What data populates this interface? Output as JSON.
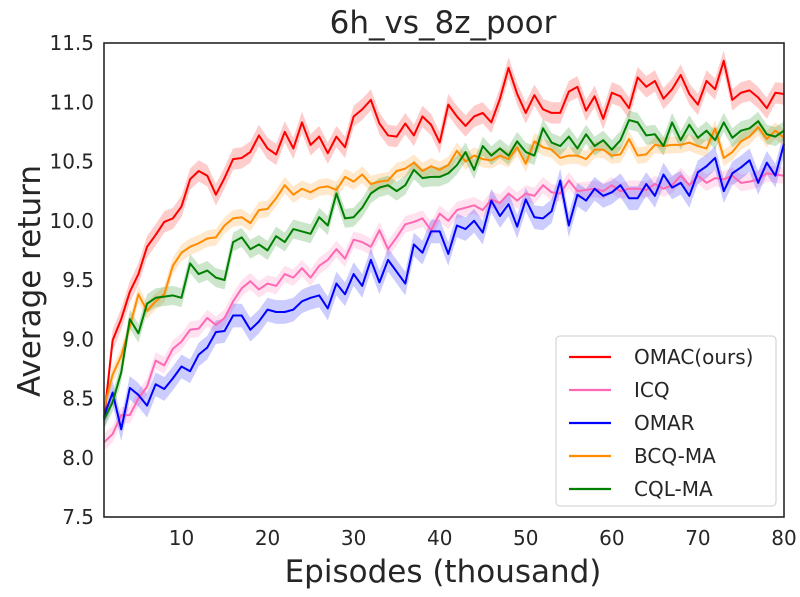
{
  "chart_data": {
    "type": "line",
    "title": "6h_vs_8z_poor",
    "xlabel": "Episodes (thousand)",
    "ylabel": "Average return",
    "xlim": [
      1,
      80
    ],
    "ylim": [
      7.5,
      11.5
    ],
    "xticks": [
      10,
      20,
      30,
      40,
      50,
      60,
      70,
      80
    ],
    "yticks": [
      7.5,
      8.0,
      8.5,
      9.0,
      9.5,
      10.0,
      10.5,
      11.0,
      11.5
    ],
    "ytick_labels": [
      "7.5",
      "8.0",
      "8.5",
      "9.0",
      "9.5",
      "10.0",
      "10.5",
      "11.0",
      "11.5"
    ],
    "legend_position": "lower-right",
    "series": [
      {
        "name": "OMAC(ours)",
        "color": "#ff0000",
        "band": 0.09,
        "values": [
          8.33,
          8.99,
          9.17,
          9.4,
          9.55,
          9.78,
          9.88,
          9.99,
          10.02,
          10.12,
          10.35,
          10.42,
          10.38,
          10.22,
          10.36,
          10.52,
          10.53,
          10.58,
          10.72,
          10.61,
          10.56,
          10.75,
          10.61,
          10.83,
          10.64,
          10.71,
          10.57,
          10.71,
          10.62,
          10.88,
          10.94,
          11.02,
          10.82,
          10.72,
          10.71,
          10.82,
          10.72,
          10.88,
          10.81,
          10.66,
          10.98,
          10.88,
          10.8,
          10.88,
          10.91,
          10.83,
          11.03,
          11.29,
          11.07,
          10.91,
          11.06,
          10.94,
          10.91,
          10.91,
          11.09,
          11.13,
          10.93,
          11.05,
          10.86,
          11.08,
          11.05,
          10.95,
          11.21,
          11.13,
          11.18,
          11.03,
          11.11,
          11.23,
          11.07,
          10.98,
          11.18,
          11.11,
          11.35,
          11.02,
          11.08,
          11.1,
          11.04,
          10.95,
          11.08,
          11.07
        ]
      },
      {
        "name": "ICQ",
        "color": "#ff69b4",
        "band": 0.07,
        "values": [
          8.13,
          8.2,
          8.36,
          8.36,
          8.5,
          8.6,
          8.82,
          8.78,
          8.92,
          8.98,
          9.08,
          9.09,
          9.18,
          9.12,
          9.18,
          9.32,
          9.43,
          9.49,
          9.42,
          9.47,
          9.45,
          9.55,
          9.52,
          9.6,
          9.52,
          9.62,
          9.67,
          9.76,
          9.68,
          9.84,
          9.82,
          9.78,
          9.92,
          9.76,
          9.86,
          9.97,
          9.99,
          10.02,
          9.92,
          10.06,
          10.0,
          10.09,
          10.11,
          10.13,
          10.09,
          10.18,
          10.15,
          10.23,
          10.17,
          10.23,
          10.21,
          10.3,
          10.24,
          10.23,
          10.34,
          10.25,
          10.26,
          10.27,
          10.25,
          10.3,
          10.25,
          10.27,
          10.27,
          10.26,
          10.31,
          10.27,
          10.3,
          10.38,
          10.3,
          10.38,
          10.32,
          10.36,
          10.35,
          10.38,
          10.32,
          10.33,
          10.35,
          10.4,
          10.39,
          10.38
        ]
      },
      {
        "name": "OMAR",
        "color": "#0000ff",
        "band": 0.1,
        "values": [
          8.35,
          8.55,
          8.24,
          8.59,
          8.53,
          8.44,
          8.62,
          8.58,
          8.67,
          8.77,
          8.73,
          8.87,
          8.93,
          9.06,
          9.07,
          9.2,
          9.2,
          9.08,
          9.15,
          9.25,
          9.23,
          9.23,
          9.25,
          9.32,
          9.35,
          9.37,
          9.26,
          9.47,
          9.38,
          9.55,
          9.45,
          9.67,
          9.48,
          9.67,
          9.57,
          9.47,
          9.8,
          9.73,
          9.91,
          9.91,
          9.72,
          9.96,
          9.93,
          10.0,
          9.9,
          10.17,
          10.04,
          10.14,
          9.95,
          10.18,
          10.03,
          10.02,
          10.08,
          10.34,
          9.96,
          10.22,
          10.17,
          10.27,
          10.21,
          10.24,
          10.3,
          10.19,
          10.19,
          10.31,
          10.21,
          10.39,
          10.28,
          10.32,
          10.21,
          10.41,
          10.46,
          10.53,
          10.25,
          10.4,
          10.45,
          10.51,
          10.32,
          10.49,
          10.38,
          10.65
        ]
      },
      {
        "name": "BCQ-MA",
        "color": "#ff8c00",
        "band": 0.07,
        "values": [
          8.42,
          8.7,
          8.86,
          9.11,
          9.38,
          9.24,
          9.32,
          9.38,
          9.62,
          9.73,
          9.78,
          9.81,
          9.85,
          9.86,
          9.96,
          10.02,
          10.03,
          9.98,
          10.09,
          10.1,
          10.19,
          10.3,
          10.22,
          10.27,
          10.24,
          10.28,
          10.29,
          10.26,
          10.37,
          10.33,
          10.39,
          10.31,
          10.33,
          10.34,
          10.42,
          10.44,
          10.49,
          10.42,
          10.46,
          10.43,
          10.47,
          10.59,
          10.5,
          10.55,
          10.52,
          10.51,
          10.55,
          10.52,
          10.62,
          10.48,
          10.67,
          10.62,
          10.6,
          10.53,
          10.55,
          10.55,
          10.52,
          10.6,
          10.6,
          10.55,
          10.56,
          10.69,
          10.55,
          10.56,
          10.64,
          10.63,
          10.64,
          10.64,
          10.66,
          10.63,
          10.61,
          10.78,
          10.53,
          10.58,
          10.67,
          10.71,
          10.79,
          10.69,
          10.76,
          10.7
        ]
      },
      {
        "name": "CQL-MA",
        "color": "#008000",
        "band": 0.08,
        "values": [
          8.32,
          8.47,
          8.72,
          9.17,
          9.05,
          9.3,
          9.35,
          9.36,
          9.37,
          9.35,
          9.64,
          9.55,
          9.58,
          9.52,
          9.5,
          9.82,
          9.86,
          9.76,
          9.8,
          9.75,
          9.87,
          9.82,
          9.93,
          9.91,
          9.89,
          10.03,
          9.96,
          10.23,
          10.02,
          10.03,
          10.11,
          10.23,
          10.28,
          10.3,
          10.25,
          10.3,
          10.43,
          10.36,
          10.37,
          10.37,
          10.4,
          10.47,
          10.58,
          10.43,
          10.63,
          10.55,
          10.61,
          10.55,
          10.67,
          10.58,
          10.55,
          10.78,
          10.66,
          10.63,
          10.71,
          10.61,
          10.73,
          10.63,
          10.68,
          10.6,
          10.68,
          10.85,
          10.83,
          10.72,
          10.73,
          10.63,
          10.83,
          10.68,
          10.81,
          10.7,
          10.76,
          10.68,
          10.83,
          10.7,
          10.76,
          10.78,
          10.84,
          10.73,
          10.71,
          10.76
        ]
      }
    ]
  }
}
